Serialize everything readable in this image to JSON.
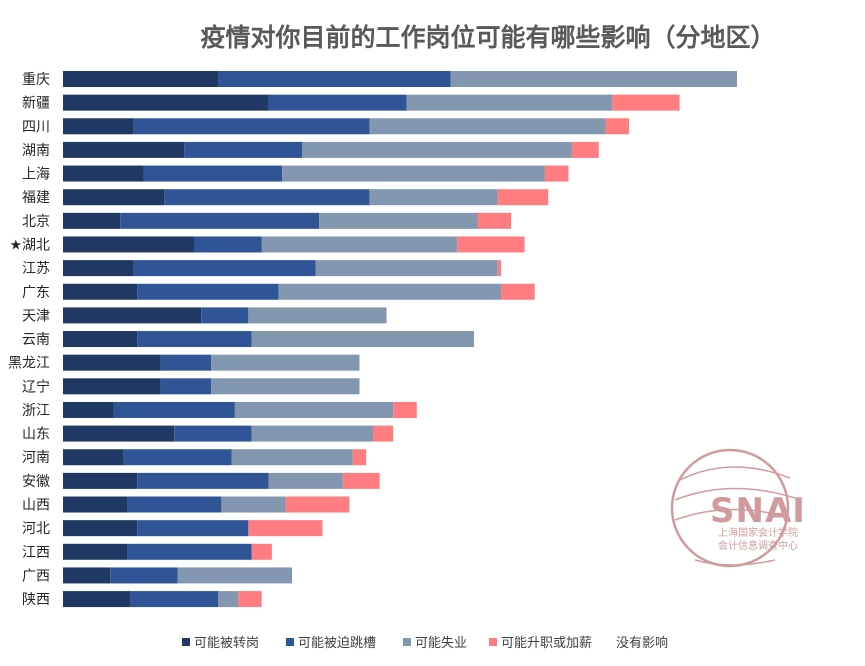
{
  "chart_data": {
    "type": "bar",
    "orientation": "horizontal",
    "stacked": true,
    "title": "疫情对你目前的工作岗位可能有哪些影响（分地区）",
    "categories": [
      "重庆",
      "新疆",
      "四川",
      "湖南",
      "上海",
      "福建",
      "北京",
      "★湖北",
      "江苏",
      "广东",
      "天津",
      "云南",
      "黑龙江",
      "辽宁",
      "浙江",
      "山东",
      "河南",
      "安徽",
      "山西",
      "河北",
      "江西",
      "广西",
      "陕西"
    ],
    "xlim": [
      0,
      100
    ],
    "grid": false,
    "legend_position": "bottom",
    "series": [
      {
        "name": "可能被转岗",
        "color": "#1f3864",
        "values": [
          23,
          30.5,
          10.5,
          18,
          12,
          15,
          8.5,
          19.5,
          10.5,
          11,
          20.5,
          11,
          14.5,
          14.5,
          7.5,
          16.5,
          9,
          11,
          9.5,
          11,
          9.5,
          7,
          10
        ]
      },
      {
        "name": "可能被迫跳槽",
        "color": "#2f5597",
        "values": [
          34.5,
          20.5,
          35,
          17.5,
          20.5,
          30.5,
          29.5,
          10,
          27,
          21,
          7,
          17,
          7.5,
          7.5,
          18,
          11.5,
          16,
          19.5,
          14,
          16.5,
          18.5,
          10,
          13
        ]
      },
      {
        "name": "可能失业",
        "color": "#8497b0",
        "values": [
          42.5,
          30.5,
          35,
          40,
          39,
          19,
          23.5,
          29,
          27,
          33,
          20.5,
          33,
          22,
          22,
          23.5,
          18,
          18,
          11,
          9.5,
          0,
          0,
          17,
          3
        ]
      },
      {
        "name": "可能升职或加薪",
        "color": "#ff7c80",
        "values": [
          0,
          10,
          3.5,
          4,
          3.5,
          7.5,
          5,
          10,
          0.5,
          5,
          0,
          0,
          0,
          0,
          3.5,
          3,
          2,
          5.5,
          9.5,
          11,
          3,
          0,
          3.5
        ]
      },
      {
        "name": "没有影响",
        "color": "#ffffff",
        "values": [
          0,
          8.5,
          16,
          20.5,
          25,
          28,
          33.5,
          31.5,
          35,
          30,
          52,
          39,
          56,
          56,
          47.5,
          51,
          55,
          53,
          57.5,
          61.5,
          69,
          66,
          70.5
        ]
      }
    ]
  },
  "watermark": {
    "logo_text": "SNAI",
    "line1": "上海国家会计学院",
    "line2": "会计信息调查中心",
    "color": "#c98a8e"
  }
}
